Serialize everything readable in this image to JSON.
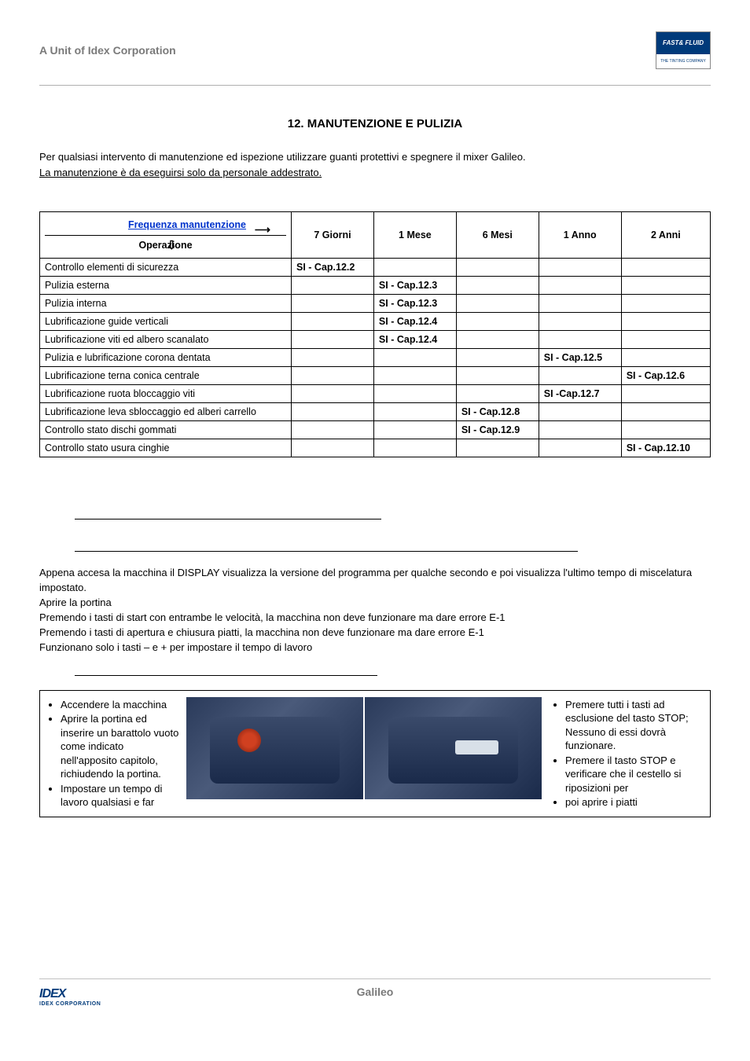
{
  "header": {
    "unit_text": "A Unit of Idex Corporation",
    "logo_top": "FAST& FLUID",
    "logo_bottom": "THE TINTING COMPANY"
  },
  "section": {
    "number": "12.",
    "title": "MANUTENZIONE E PULIZIA",
    "intro_line1": "Per qualsiasi intervento di manutenzione ed ispezione utilizzare guanti protettivi e spegnere il mixer Galileo.",
    "intro_line2": "La manutenzione è da eseguirsi solo da personale addestrato."
  },
  "table": {
    "freq_label": "Frequenza manutenzione",
    "op_label": "Operazione",
    "columns": [
      "7 Giorni",
      "1 Mese",
      "6 Mesi",
      "1 Anno",
      "2 Anni"
    ],
    "rows": [
      {
        "op": "Controllo elementi di sicurezza",
        "cells": [
          "SI - Cap.12.2",
          "",
          "",
          "",
          ""
        ]
      },
      {
        "op": "Pulizia esterna",
        "cells": [
          "",
          "SI - Cap.12.3",
          "",
          "",
          ""
        ]
      },
      {
        "op": "Pulizia interna",
        "cells": [
          "",
          "SI - Cap.12.3",
          "",
          "",
          ""
        ]
      },
      {
        "op": "Lubrificazione guide verticali",
        "cells": [
          "",
          "SI - Cap.12.4",
          "",
          "",
          ""
        ]
      },
      {
        "op": "Lubrificazione viti ed albero scanalato",
        "cells": [
          "",
          "SI - Cap.12.4",
          "",
          "",
          ""
        ]
      },
      {
        "op": "Pulizia e lubrificazione corona dentata",
        "cells": [
          "",
          "",
          "",
          "SI - Cap.12.5",
          ""
        ]
      },
      {
        "op": "Lubrificazione terna conica centrale",
        "cells": [
          "",
          "",
          "",
          "",
          "SI - Cap.12.6"
        ]
      },
      {
        "op": "Lubrificazione ruota bloccaggio viti",
        "cells": [
          "",
          "",
          "",
          "SI -Cap.12.7",
          ""
        ]
      },
      {
        "op": "Lubrificazione leva sbloccaggio ed alberi carrello",
        "cells": [
          "",
          "",
          "SI - Cap.12.8",
          "",
          ""
        ]
      },
      {
        "op": "Controllo stato dischi gommati",
        "cells": [
          "",
          "",
          "SI - Cap.12.9",
          "",
          ""
        ]
      },
      {
        "op": "Controllo stato usura cinghie",
        "cells": [
          "",
          "",
          "",
          "",
          "SI - Cap.12.10"
        ]
      }
    ]
  },
  "body": {
    "p1": "Appena accesa la macchina il DISPLAY visualizza la versione del programma per qualche secondo e poi visualizza l'ultimo tempo di miscelatura impostato.",
    "p2": "Aprire la portina",
    "p3": "Premendo i tasti di start con entrambe le velocità, la macchina non deve funzionare ma dare errore E-1",
    "p4": "Premendo i tasti di apertura e chiusura piatti, la macchina non deve funzionare ma dare errore E-1",
    "p5": "Funzionano solo i tasti – e + per impostare il tempo di lavoro"
  },
  "box": {
    "left": [
      "Accendere la macchina",
      "Aprire la portina ed inserire un barattolo vuoto come indicato nell'apposito capitolo, richiudendo la portina.",
      "Impostare un tempo di lavoro qualsiasi e far"
    ],
    "right": [
      "Premere tutti i tasti ad esclusione del tasto STOP; Nessuno di essi dovrà funzionare.",
      "Premere il tasto STOP e verificare che il cestello si riposizioni per",
      "poi aprire i piatti"
    ]
  },
  "footer": {
    "idex": "IDEX",
    "corp": "IDEX CORPORATION",
    "product": "Galileo"
  },
  "colors": {
    "header_text": "#7a7a7a",
    "link_blue": "#0033cc",
    "logo_blue": "#003a7a",
    "border_gray": "#b0b0b0"
  }
}
